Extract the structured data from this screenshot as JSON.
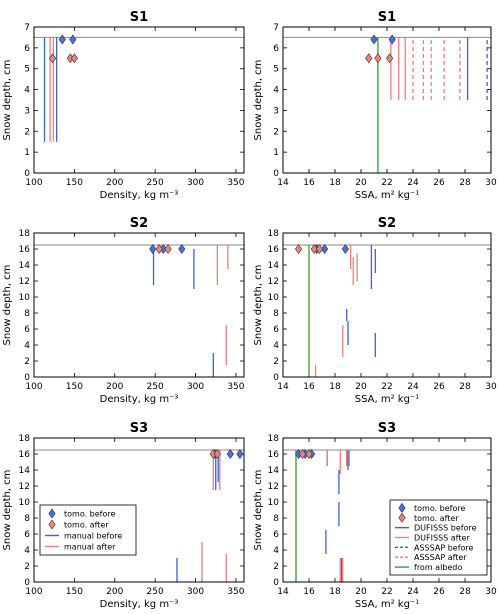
{
  "legends": {
    "density": [
      {
        "label": "tomo. before",
        "kind": "diamond",
        "color": "#4a6fe3"
      },
      {
        "label": "tomo. after",
        "kind": "diamond",
        "color": "#e8847a"
      },
      {
        "label": "manual before",
        "kind": "line",
        "color": "#3a5fe0"
      },
      {
        "label": "manual after",
        "kind": "line",
        "color": "#ef7d7d"
      }
    ],
    "ssa": [
      {
        "label": "tomo. before",
        "kind": "diamond",
        "color": "#4a6fe3"
      },
      {
        "label": "tomo. after",
        "kind": "diamond",
        "color": "#e8847a"
      },
      {
        "label": "DUFISSS before",
        "kind": "line",
        "color": "#3a5fe0"
      },
      {
        "label": "DUFISSS after",
        "kind": "line",
        "color": "#ef7d7d"
      },
      {
        "label": "ASSSAP before",
        "kind": "dash",
        "color": "#3a5fe0"
      },
      {
        "label": "ASSSAP after",
        "kind": "dash",
        "color": "#ef7d7d"
      },
      {
        "label": "from albedo",
        "kind": "line",
        "color": "#2ca02c"
      }
    ]
  },
  "colors": {
    "before": "#3a5fe0",
    "after": "#ef7d7d",
    "albedo": "#2ca02c",
    "diamond_before": "#4a6fe3",
    "diamond_after": "#e8847a",
    "top": "#888888"
  },
  "chart_data": [
    {
      "type": "scatter",
      "title": "S1",
      "xlabel": "Density, kg m⁻³",
      "ylabel": "Snow depth, cm",
      "xlim": [
        100,
        360
      ],
      "ylim": [
        0,
        7
      ],
      "xticks": [
        100,
        150,
        200,
        250,
        300,
        350
      ],
      "yticks": [
        0,
        1,
        2,
        3,
        4,
        5,
        6,
        7
      ],
      "top_line": 6.5,
      "diamonds_before": [
        [
          135,
          6.4
        ],
        [
          148,
          6.4
        ]
      ],
      "diamonds_after": [
        [
          123,
          5.5
        ],
        [
          145,
          5.5
        ],
        [
          150,
          5.5
        ]
      ],
      "segments_before": [
        [
          113,
          1.5,
          6.5
        ],
        [
          128,
          1.5,
          6.5
        ]
      ],
      "segments_after": [
        [
          120,
          1.5,
          6.5
        ],
        [
          124,
          1.5,
          6.5
        ]
      ],
      "dashed_before": [],
      "dashed_after": [],
      "albedo": []
    },
    {
      "type": "scatter",
      "title": "S1",
      "xlabel": "SSA, m² kg⁻¹",
      "ylabel": "Snow depth, cm",
      "xlim": [
        14,
        30
      ],
      "ylim": [
        0,
        7
      ],
      "xticks": [
        14,
        16,
        18,
        20,
        22,
        24,
        26,
        28,
        30
      ],
      "yticks": [
        0,
        1,
        2,
        3,
        4,
        5,
        6,
        7
      ],
      "top_line": 6.5,
      "diamonds_before": [
        [
          21.0,
          6.4
        ],
        [
          22.4,
          6.4
        ]
      ],
      "diamonds_after": [
        [
          20.6,
          5.5
        ],
        [
          21.3,
          5.5
        ],
        [
          22.2,
          5.5
        ]
      ],
      "segments_before": [
        [
          28.2,
          3.5,
          6.5
        ]
      ],
      "segments_after": [
        [
          22.3,
          3.5,
          6.5
        ],
        [
          22.9,
          3.5,
          6.5
        ],
        [
          23.4,
          3.5,
          6.5
        ]
      ],
      "dashed_before": [
        [
          29.7,
          3.5,
          6.5
        ]
      ],
      "dashed_after": [
        [
          24.0,
          3.5,
          6.5
        ],
        [
          24.8,
          3.5,
          6.5
        ],
        [
          25.4,
          3.5,
          6.5
        ],
        [
          26.4,
          3.5,
          6.5
        ],
        [
          27.6,
          3.5,
          6.5
        ]
      ],
      "albedo": [
        [
          21.3,
          0,
          6.5
        ]
      ]
    },
    {
      "type": "scatter",
      "title": "S2",
      "xlabel": "Density, kg m⁻³",
      "ylabel": "Snow depth, cm",
      "xlim": [
        100,
        360
      ],
      "ylim": [
        0,
        18
      ],
      "xticks": [
        100,
        150,
        200,
        250,
        300,
        350
      ],
      "yticks": [
        0,
        2,
        4,
        6,
        8,
        10,
        12,
        14,
        16,
        18
      ],
      "top_line": 16.5,
      "diamonds_before": [
        [
          247,
          16.0
        ],
        [
          260,
          16.0
        ],
        [
          283,
          16.0
        ]
      ],
      "diamonds_after": [
        [
          255,
          16.0
        ],
        [
          266,
          16.0
        ]
      ],
      "segments_before": [
        [
          248,
          11.5,
          16.5
        ],
        [
          298,
          11.0,
          16.0
        ],
        [
          322,
          0,
          3.0
        ]
      ],
      "segments_after": [
        [
          327,
          11.5,
          16.5
        ],
        [
          340,
          13.5,
          16.5
        ],
        [
          338,
          1.5,
          6.5
        ]
      ],
      "dashed_before": [],
      "dashed_after": [],
      "albedo": []
    },
    {
      "type": "scatter",
      "title": "S2",
      "xlabel": "SSA, m² kg⁻¹",
      "ylabel": "Snow depth, cm",
      "xlim": [
        14,
        30
      ],
      "ylim": [
        0,
        18
      ],
      "xticks": [
        14,
        16,
        18,
        20,
        22,
        24,
        26,
        28,
        30
      ],
      "yticks": [
        0,
        2,
        4,
        6,
        8,
        10,
        12,
        14,
        16,
        18
      ],
      "top_line": 16.5,
      "diamonds_before": [
        [
          16.6,
          16.0
        ],
        [
          17.2,
          16.0
        ],
        [
          18.8,
          16.0
        ]
      ],
      "diamonds_after": [
        [
          15.2,
          16.0
        ],
        [
          16.4,
          16.0
        ],
        [
          16.8,
          16.0
        ]
      ],
      "segments_before": [
        [
          18.9,
          7.0,
          8.5
        ],
        [
          19.0,
          4.0,
          7.0
        ],
        [
          20.8,
          11.0,
          16.5
        ],
        [
          21.1,
          13.0,
          16.0
        ],
        [
          21.1,
          2.5,
          5.5
        ]
      ],
      "segments_after": [
        [
          16.5,
          0,
          1.5
        ],
        [
          18.6,
          2.5,
          6.5
        ],
        [
          19.2,
          13.5,
          16.5
        ],
        [
          19.4,
          11.5,
          15.0
        ],
        [
          19.7,
          12.0,
          15.5
        ]
      ],
      "dashed_before": [],
      "dashed_after": [],
      "albedo": [
        [
          16.0,
          0,
          16.5
        ]
      ]
    },
    {
      "type": "scatter",
      "title": "S3",
      "xlabel": "Density, kg m⁻³",
      "ylabel": "Snow depth, cm",
      "xlim": [
        100,
        360
      ],
      "ylim": [
        0,
        18
      ],
      "xticks": [
        100,
        150,
        200,
        250,
        300,
        350
      ],
      "yticks": [
        0,
        2,
        4,
        6,
        8,
        10,
        12,
        14,
        16,
        18
      ],
      "top_line": 16.5,
      "diamonds_before": [
        [
          324,
          16.0
        ],
        [
          343,
          16.0
        ],
        [
          355,
          16.0
        ]
      ],
      "diamonds_after": [
        [
          322,
          16.0
        ],
        [
          327,
          16.0
        ]
      ],
      "segments_before": [
        [
          277,
          0,
          3.0
        ],
        [
          325,
          11.5,
          16.5
        ],
        [
          328,
          12.5,
          16.5
        ]
      ],
      "segments_after": [
        [
          308,
          0,
          5.0
        ],
        [
          322,
          11.5,
          16.5
        ],
        [
          330,
          11.5,
          16.5
        ],
        [
          338,
          0,
          3.5
        ]
      ],
      "dashed_before": [],
      "dashed_after": [],
      "albedo": []
    },
    {
      "type": "scatter",
      "title": "S3",
      "xlabel": "SSA, m² kg⁻¹",
      "ylabel": "Snow depth, cm",
      "xlim": [
        14,
        30
      ],
      "ylim": [
        0,
        18
      ],
      "xticks": [
        14,
        16,
        18,
        20,
        22,
        24,
        26,
        28,
        30
      ],
      "yticks": [
        0,
        2,
        4,
        6,
        8,
        10,
        12,
        14,
        16,
        18
      ],
      "top_line": 16.5,
      "diamonds_before": [
        [
          15.2,
          16.0
        ],
        [
          15.7,
          16.0
        ],
        [
          16.2,
          16.0
        ]
      ],
      "diamonds_after": [
        [
          15.5,
          16.0
        ],
        [
          16.0,
          16.0
        ]
      ],
      "segments_before": [
        [
          17.4,
          14.5,
          16.5
        ],
        [
          17.3,
          3.5,
          6.5
        ],
        [
          18.3,
          7.0,
          10.0
        ],
        [
          18.3,
          11.0,
          14.0
        ],
        [
          18.9,
          14.5,
          16.5
        ],
        [
          19.0,
          14.0,
          16.5
        ],
        [
          18.5,
          0,
          3.0
        ]
      ],
      "segments_after": [
        [
          17.4,
          14.5,
          16.5
        ],
        [
          18.4,
          13.5,
          16.5
        ],
        [
          18.9,
          14.5,
          16.5
        ],
        [
          19.1,
          14.5,
          16.5
        ],
        [
          18.4,
          0,
          3.0
        ],
        [
          18.6,
          0,
          3.0
        ]
      ],
      "dashed_before": [],
      "dashed_after": [],
      "albedo": [
        [
          15.0,
          0,
          16.5
        ]
      ]
    }
  ]
}
